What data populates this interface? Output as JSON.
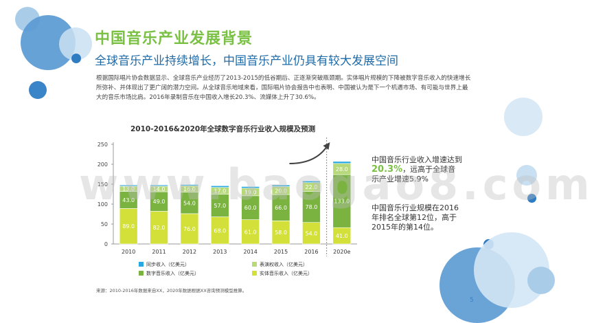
{
  "title": "中国音乐产业发展背景",
  "subtitle": "全球音乐产业持续增长，中国音乐产业仍具有较大发展空间",
  "intro": "根据国际唱片协会数据显示、全球音乐产业经历了2013-2015的低谷期后、正逐渐突破瓶颈期。实体唱片规模的下降被数字音乐收入的快速增长所弥补、并体现出了更广阔的潜力空间。从全球音乐地域来看，国际唱片协会报告中也表明、中国被认为是下一个机遇市场、有可能与世界上最大的音乐市场比肩。2016年录制音乐在中国收入增长20.3%、流媒体上升了30.6%。",
  "side_text": {
    "p1_before": "中国音乐行业收入增速达到",
    "p1_highlight": "20.3%",
    "p1_after": "，远高于全球音乐产业增速5.9%",
    "p2": "中国音乐行业规模在2016年排名全球第12位，高于2015年的第14位。"
  },
  "source": "来源：2010-2016年数据来自XX，2020年数据根据XX咨询预测模型推算。",
  "page_number": "5",
  "watermark": "www.baogao8.com",
  "colors": {
    "title": "#7ac143",
    "subtitle": "#1e6aa8",
    "sync": "#28a8e0",
    "performance": "#b7d97a",
    "digital": "#7ab340",
    "physical": "#d3e03a"
  },
  "chart_data": {
    "type": "bar",
    "stacked": true,
    "title": "2010-2016&2020年全球数字音乐行业收入规模及预测",
    "categories": [
      "2010",
      "2011",
      "2012",
      "2013",
      "2014",
      "2015",
      "2016",
      "2020e"
    ],
    "ylim": [
      0,
      250
    ],
    "yticks": [
      0,
      50,
      100,
      150,
      200,
      250
    ],
    "grid": false,
    "legend_position": "bottom-left",
    "series": [
      {
        "name": "实体音乐收入（亿美元）",
        "color": "#d3e03a",
        "values": [
          89.0,
          82.0,
          76.0,
          68.0,
          61.0,
          58.0,
          54.0,
          41.0
        ]
      },
      {
        "name": "数字音乐收入（亿美元）",
        "color": "#7ab340",
        "values": [
          43.0,
          49.0,
          54.0,
          57.0,
          60.0,
          66.0,
          78.0,
          133.0
        ]
      },
      {
        "name": "表演权收入（亿美元）",
        "color": "#b7d97a",
        "values": [
          13.0,
          14.0,
          16.0,
          17.0,
          19.0,
          20.0,
          22.0,
          28.0
        ]
      },
      {
        "name": "同步收入（亿美元）",
        "color": "#28a8e0",
        "values": [
          3.0,
          3.0,
          3.0,
          4.0,
          4.0,
          4.0,
          4.0,
          5.0
        ]
      }
    ],
    "labeled_series": [
      0,
      1,
      2
    ],
    "forecast_arrow": true
  }
}
